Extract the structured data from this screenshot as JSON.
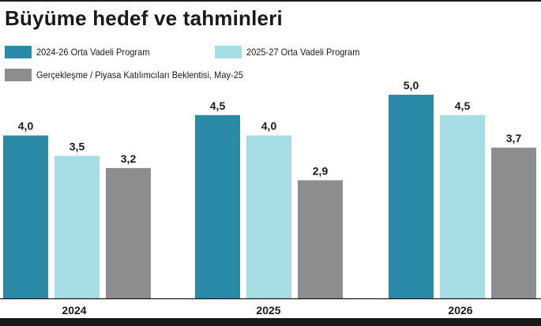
{
  "header": {
    "title": "Büyüme hedef ve tahminleri"
  },
  "colors": {
    "series_1": "#2a8aa8",
    "series_2": "#a6dde4",
    "series_3": "#8c8d8e",
    "text": "#1a1a1a"
  },
  "chart_data": {
    "type": "bar",
    "title": "Büyüme hedef ve tahminleri",
    "categories": [
      "2024",
      "2025",
      "2026"
    ],
    "series": [
      {
        "name": "2024-26 Orta Vadeli Program",
        "values": [
          4.0,
          4.5,
          5.0
        ],
        "labels": [
          "4,0",
          "4,5",
          "5,0"
        ]
      },
      {
        "name": "2025-27 Orta Vadeli Program",
        "values": [
          3.5,
          4.0,
          4.5
        ],
        "labels": [
          "3,5",
          "4,0",
          "4,5"
        ]
      },
      {
        "name": "Gerçekleşme / Piyasa Katılımcıları Beklentisi, May-25",
        "values": [
          3.2,
          2.9,
          3.7
        ],
        "labels": [
          "3,2",
          "2,9",
          "3,7"
        ]
      }
    ],
    "xlabel": "",
    "ylabel": "",
    "ylim": [
      0,
      5.0
    ],
    "grid": false,
    "legend": "top-left"
  }
}
